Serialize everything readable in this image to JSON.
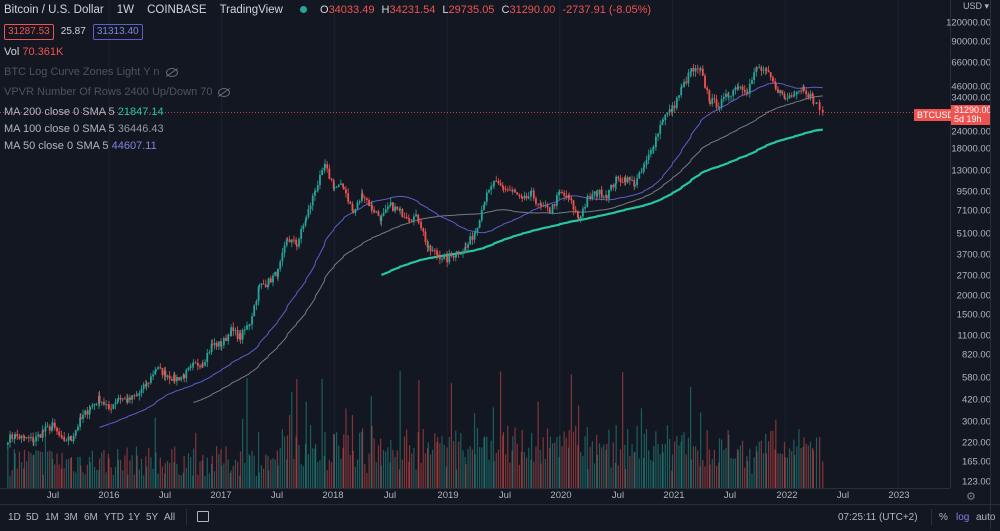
{
  "header": {
    "title": "Bitcoin / U.S. Dollar",
    "interval": "1W",
    "exchange": "COINBASE",
    "source": "TradingView",
    "ohlc": {
      "o_label": "O",
      "o": "34033.49",
      "h_label": "H",
      "h": "34231.54",
      "l_label": "L",
      "l": "29735.05",
      "c_label": "C",
      "c": "31290.00",
      "change": "-2737.91 (-8.05%)"
    },
    "bid": "31287.53",
    "spread": "25.87",
    "ask": "31313.40"
  },
  "indicators": [
    {
      "label": "Vol",
      "value": "70.361K"
    },
    {
      "label": "BTC Log Curve Zones Light Y n",
      "value": ""
    },
    {
      "label": "VPVR Number Of Rows 2400 Up/Down 70",
      "value": ""
    },
    {
      "label": "MA 200 close 0 SMA 5",
      "value": "21847.14"
    },
    {
      "label": "MA 100 close 0 SMA 5",
      "value": "36446.43"
    },
    {
      "label": "MA 50 close 0 SMA 5",
      "value": "44607.11"
    }
  ],
  "price_axis": {
    "currency": "USD",
    "ticks": [
      "120000.00",
      "90000.00",
      "66000.00",
      "46000.00",
      "34000.00",
      "24000.00",
      "18000.00",
      "13000.00",
      "9500.00",
      "7100.00",
      "5100.00",
      "3700.00",
      "2700.00",
      "2000.00",
      "1500.00",
      "1100.00",
      "820.00",
      "580.00",
      "420.00",
      "300.00",
      "220.00",
      "165.00",
      "123.00"
    ],
    "symbol_label": "BTCUSD",
    "last_price": "31290.00",
    "countdown": "5d 19h"
  },
  "time_axis": [
    "Jul",
    "2016",
    "Jul",
    "2017",
    "Jul",
    "2018",
    "Jul",
    "2019",
    "Jul",
    "2020",
    "Jul",
    "2021",
    "Jul",
    "2022",
    "Jul",
    "2023"
  ],
  "bottom_bar": {
    "ranges": [
      "1D",
      "5D",
      "1M",
      "3M",
      "6M",
      "YTD",
      "1Y",
      "5Y",
      "All"
    ],
    "clock": "07:25:11 (UTC+2)",
    "percent": "%",
    "log": "log",
    "auto": "auto"
  },
  "colors": {
    "up": "#26a69a",
    "down": "#ef5350",
    "ma200": "#26c6a0",
    "ma100": "#787b86",
    "ma50": "#5b5fc7",
    "background": "#131722"
  },
  "chart_data": {
    "type": "candlestick",
    "scale": "log",
    "ylim": [
      110,
      130000
    ],
    "xlim": [
      "2015-02",
      "2023-06"
    ],
    "monthly_close": {
      "start": "2015-03",
      "values": [
        245,
        236,
        230,
        263,
        284,
        230,
        236,
        314,
        377,
        430,
        368,
        437,
        416,
        448,
        531,
        673,
        624,
        575,
        609,
        700,
        742,
        963,
        970,
        1190,
        1080,
        1350,
        2300,
        2480,
        2870,
        4700,
        4340,
        6470,
        10000,
        13800,
        10200,
        10300,
        6900,
        9240,
        7500,
        6400,
        7730,
        7030,
        6630,
        6370,
        4020,
        3740,
        3460,
        3850,
        4100,
        5300,
        8500,
        10800,
        10100,
        9600,
        8300,
        9200,
        7550,
        7200,
        9350,
        8600,
        6400,
        8600,
        9450,
        9140,
        11350,
        11650,
        10780,
        13800,
        19700,
        29000,
        33100,
        45200,
        58800,
        57700,
        37300,
        35000,
        41500,
        47100,
        43800,
        61300,
        57000,
        46300,
        38500,
        43200,
        45500,
        37700,
        31290
      ]
    },
    "moving_averages": [
      {
        "name": "MA 200",
        "period": 200
      },
      {
        "name": "MA 100",
        "period": 100
      },
      {
        "name": "MA 50",
        "period": 50
      }
    ]
  }
}
